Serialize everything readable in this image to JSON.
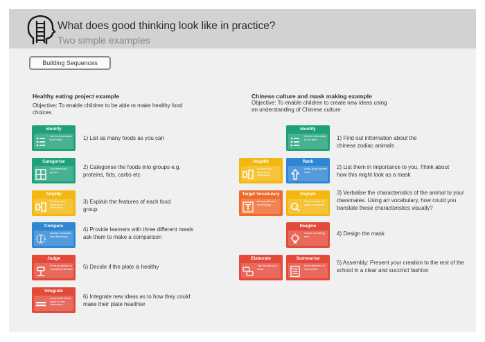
{
  "header": {
    "title": "What does good thinking look like in practice?",
    "subtitle": "Two simple examples",
    "button_label": "Building Sequences"
  },
  "left": {
    "title": "Healthy eating project example",
    "objective": "Objective: To enable children to be able to make healthy food choices.",
    "cards": [
      {
        "label": "Identify",
        "text": "List the information to be used."
      },
      {
        "label": "Categorise",
        "text": "Sort items into groups."
      },
      {
        "label": "Amplify",
        "text": "Provide more features or information."
      },
      {
        "label": "Compare",
        "text": "Identify similarities and differences."
      },
      {
        "label": "Judge",
        "text": "Form an opinion or considered decision."
      },
      {
        "label": "Integrate",
        "text": "Incorporate others ideas or new information."
      }
    ],
    "steps": [
      "1) List as many foods as you can",
      "2) Categorise the foods into groups e.g. proteins, fats, carbs etc",
      "3) Explain the features of each food group",
      "4) Provide learners with three different meals ask them to make a comparison",
      "5) Decide if the plate is healthy",
      "6) Integrate new ideas as to how they could make their plate healthier"
    ]
  },
  "right": {
    "title": "Chinese culture and mask making example",
    "objective": "Objective: To enable children to create new ideas using an understanding of Chinese culture",
    "cards": [
      {
        "label": "Identify",
        "text": "List the information to be used."
      },
      {
        "label": "Amplify",
        "text": "Provide more features or information."
      },
      {
        "label": "Rank",
        "text": "Order by an agreed value."
      },
      {
        "label": "Target Vocabulary",
        "text": "Incorporate new terminology."
      },
      {
        "label": "Explain",
        "text": "Communicate the cause or reasons."
      },
      {
        "label": "Imagine",
        "text": "Create something new."
      },
      {
        "label": "Elaborate",
        "text": "Talk through your ideas."
      },
      {
        "label": "Summarise",
        "text": "Brief statement of main points."
      }
    ],
    "steps": [
      "1) Find out information about the chinese zodiac animals",
      "2) List them in importance to you. Think about how this might look as a mask",
      "3) Verbalise the characteristics of the animal to your classmates. Using art vocabulary, how could you translate these characteristics visually?",
      "4) Design the mask",
      "5) Assembly: Present your creation to the rest of the school in a clear and succinct fashion"
    ]
  },
  "colors": {
    "identify": "#1fa078",
    "amplify": "#f3b80f",
    "compare": "#2f86d4",
    "judge": "#e34a3a",
    "header_bg": "#d2d2d2",
    "page_bg": "#f0f0f0"
  }
}
